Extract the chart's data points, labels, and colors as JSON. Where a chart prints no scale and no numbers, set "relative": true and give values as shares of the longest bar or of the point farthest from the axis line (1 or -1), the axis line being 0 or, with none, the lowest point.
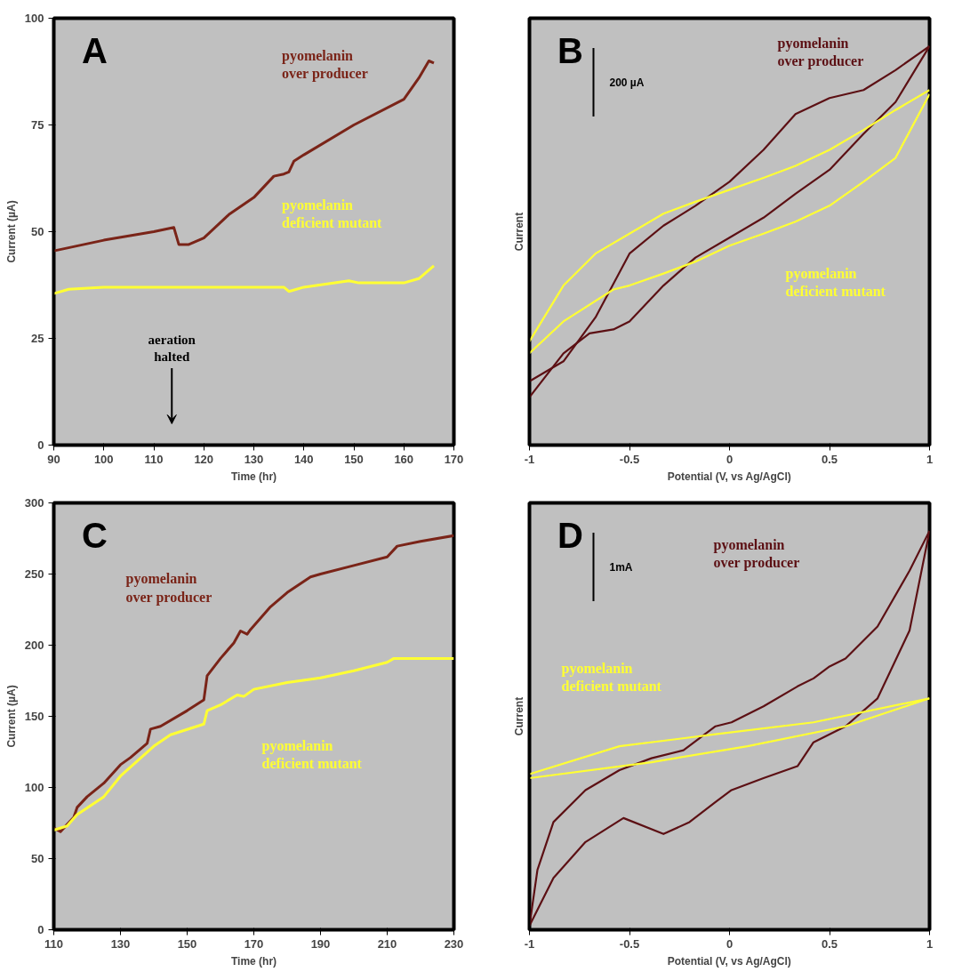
{
  "chart_data": [
    {
      "type": "line",
      "xlabel": "Time (hr)",
      "ylabel": "Current (µA)",
      "xlim": [
        90,
        170
      ],
      "ylim": [
        0,
        100
      ],
      "xticks": [
        90,
        100,
        110,
        120,
        130,
        140,
        150,
        160,
        170
      ],
      "yticks": [
        0,
        25,
        50,
        75,
        100
      ],
      "annotations": [
        "A",
        "aeration\nhalted"
      ],
      "series": [
        {
          "name": "pyomelanin\nover producer",
          "color": "#7a2418",
          "x": [
            90,
            100,
            110,
            114,
            115,
            117,
            120,
            125,
            130,
            134,
            136,
            137,
            138,
            140,
            150,
            160,
            163,
            165,
            166
          ],
          "values": [
            45.5,
            48,
            50,
            51,
            47,
            47,
            48.5,
            54,
            58,
            63,
            63.5,
            64,
            66.5,
            68,
            75,
            81,
            86,
            90,
            89.5
          ]
        },
        {
          "name": "pyomelanin\ndeficient mutant",
          "color": "#ffff33",
          "x": [
            90,
            93,
            100,
            110,
            130,
            136,
            137,
            140,
            149,
            151,
            160,
            163,
            166
          ],
          "values": [
            35.5,
            36.5,
            37,
            37,
            37,
            37,
            36,
            37,
            38.5,
            38,
            38,
            39,
            42
          ]
        }
      ]
    },
    {
      "type": "line",
      "relative": true,
      "xlabel": "Potential (V, vs Ag/AgCl)",
      "ylabel": "Current",
      "xlim": [
        -1,
        1
      ],
      "xticks": [
        -1,
        -0.5,
        0,
        0.5,
        1
      ],
      "tick_labels": "x",
      "annotations": [
        "B",
        "200 µA"
      ],
      "series": [
        {
          "name": "pyomelanin\nover producer",
          "color": "#5c1014",
          "x": [
            -1,
            -0.83,
            -0.67,
            -0.5,
            -0.33,
            -0.17,
            0,
            0.17,
            0.33,
            0.5,
            0.67,
            0.83,
            1
          ],
          "values": [
            0.16,
            0.21,
            0.32,
            0.48,
            0.55,
            0.6,
            0.66,
            0.74,
            0.83,
            0.87,
            0.89,
            0.94,
            1
          ]
        },
        {
          "color": "#5c1014",
          "x": [
            -1,
            -0.83,
            -0.7,
            -0.58,
            -0.5,
            -0.33,
            -0.17,
            0,
            0.17,
            0.33,
            0.5,
            0.67,
            0.83,
            1
          ],
          "values": [
            0.12,
            0.23,
            0.28,
            0.29,
            0.31,
            0.4,
            0.47,
            0.52,
            0.57,
            0.63,
            0.69,
            0.78,
            0.86,
            1
          ]
        },
        {
          "name": "pyomelanin\ndeficient mutant",
          "color": "#ffff33",
          "x": [
            -1,
            -0.83,
            -0.67,
            -0.5,
            -0.33,
            -0.17,
            0,
            0.17,
            0.33,
            0.5,
            0.67,
            0.83,
            1
          ],
          "values": [
            0.26,
            0.4,
            0.48,
            0.53,
            0.58,
            0.61,
            0.64,
            0.67,
            0.7,
            0.74,
            0.79,
            0.84,
            0.89
          ]
        },
        {
          "color": "#ffff33",
          "x": [
            -1,
            -0.83,
            -0.58,
            -0.5,
            -0.33,
            -0.17,
            0,
            0.17,
            0.33,
            0.5,
            0.67,
            0.83,
            1
          ],
          "values": [
            0.23,
            0.31,
            0.39,
            0.4,
            0.43,
            0.46,
            0.5,
            0.53,
            0.56,
            0.6,
            0.66,
            0.72,
            0.88
          ]
        }
      ]
    },
    {
      "type": "line",
      "xlabel": "Time (hr)",
      "ylabel": "Current (µA)",
      "xlim": [
        110,
        230
      ],
      "ylim": [
        0,
        300
      ],
      "xticks": [
        110,
        130,
        150,
        170,
        190,
        210,
        230
      ],
      "yticks": [
        0,
        50,
        100,
        150,
        200,
        250,
        300
      ],
      "annotations": [
        "C"
      ],
      "series": [
        {
          "name": "pyomelanin\nover producer",
          "color": "#7a2418",
          "x": [
            110,
            112,
            116,
            117,
            120,
            125,
            130,
            133,
            138,
            139,
            142,
            150,
            155,
            156,
            160,
            164,
            166,
            168,
            169,
            175,
            180,
            187,
            190,
            200,
            210,
            213,
            220,
            230
          ],
          "values": [
            71.6,
            69,
            79,
            86,
            93.5,
            103,
            116,
            121,
            131,
            141,
            143,
            154,
            161.5,
            178.5,
            190.7,
            201.6,
            210,
            207.7,
            211,
            227,
            237,
            248,
            250,
            256,
            262,
            269.6,
            273,
            277
          ]
        },
        {
          "name": "pyomelanin\ndeficient mutant",
          "color": "#ffff33",
          "x": [
            110,
            114,
            117,
            125,
            130,
            140,
            145,
            155,
            156,
            160,
            165,
            167,
            170,
            180,
            190,
            200,
            210,
            212,
            230
          ],
          "values": [
            70,
            73,
            81,
            93.5,
            108,
            129,
            137,
            144.5,
            154,
            158,
            165,
            164,
            169,
            173.7,
            177,
            182,
            188,
            190.7,
            190.7
          ]
        }
      ]
    },
    {
      "type": "line",
      "relative": true,
      "xlabel": "Potential (V, vs Ag/AgCl)",
      "ylabel": "Current",
      "xlim": [
        -1,
        1
      ],
      "xticks": [
        -1,
        -0.5,
        0,
        0.5,
        1
      ],
      "tick_labels": "x",
      "annotations": [
        "D",
        "1mA"
      ],
      "series": [
        {
          "name": "pyomelanin\nover producer",
          "color": "#5c1014",
          "x": [
            -1,
            -0.96,
            -0.88,
            -0.72,
            -0.55,
            -0.39,
            -0.23,
            -0.15,
            -0.07,
            0.01,
            0.17,
            0.34,
            0.42,
            0.5,
            0.58,
            0.74,
            0.9,
            1
          ],
          "values": [
            0.01,
            0.15,
            0.27,
            0.35,
            0.4,
            0.43,
            0.45,
            0.48,
            0.51,
            0.52,
            0.56,
            0.61,
            0.63,
            0.66,
            0.68,
            0.76,
            0.9,
            1
          ]
        },
        {
          "color": "#5c1014",
          "x": [
            -1,
            -0.88,
            -0.72,
            -0.53,
            -0.33,
            -0.2,
            -0.07,
            0.01,
            0.17,
            0.34,
            0.42,
            0.58,
            0.74,
            0.9,
            1
          ],
          "values": [
            0.01,
            0.13,
            0.22,
            0.28,
            0.24,
            0.27,
            0.32,
            0.35,
            0.38,
            0.41,
            0.47,
            0.51,
            0.58,
            0.75,
            1
          ]
        },
        {
          "name": "pyomelanin\ndeficient mutant",
          "color": "#ffff33",
          "x": [
            -1,
            -0.55,
            -0.07,
            0.42,
            1
          ],
          "values": [
            0.39,
            0.46,
            0.49,
            0.52,
            0.58
          ]
        },
        {
          "color": "#ffff33",
          "x": [
            -1,
            -0.39,
            0.09,
            0.58,
            1
          ],
          "values": [
            0.38,
            0.42,
            0.46,
            0.51,
            0.58
          ]
        }
      ]
    }
  ]
}
